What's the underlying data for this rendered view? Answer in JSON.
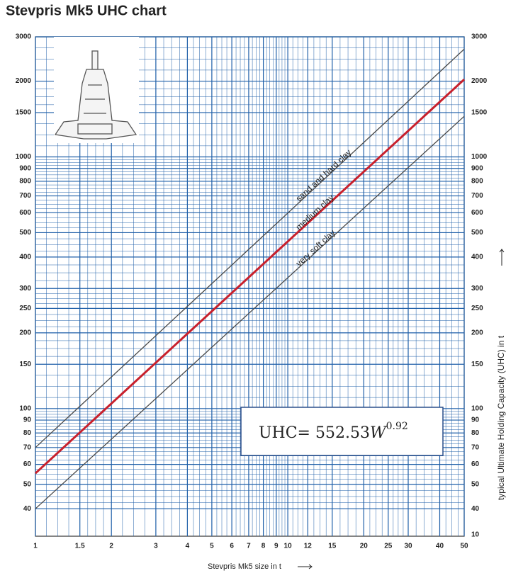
{
  "chart_data": {
    "type": "line",
    "title": "Stevpris Mk5 UHC chart",
    "x_label": "Stevpris Mk5 size in t",
    "y2_label": "typical Ultimate Holding Capacity (UHC) in t",
    "xscale": "log",
    "yscale": "log",
    "x": [
      1,
      50
    ],
    "series": [
      {
        "name": "sand and hard clay",
        "color": "#4a4a4a",
        "values": [
          70,
          2680
        ]
      },
      {
        "name": "medium clay",
        "color": "#c8202c",
        "values": [
          55.3,
          2032
        ]
      },
      {
        "name": "very soft clay",
        "color": "#4a4a4a",
        "values": [
          40,
          1450
        ]
      }
    ],
    "xlim": [
      1,
      50
    ],
    "ylim": [
      31.1,
      3000
    ],
    "xticks": [
      1,
      1.5,
      2,
      3,
      4,
      5,
      6,
      7,
      8,
      9,
      10,
      12,
      15,
      20,
      25,
      30,
      40,
      50
    ],
    "yticks": [
      40,
      50,
      60,
      70,
      80,
      90,
      100,
      150,
      200,
      250,
      300,
      400,
      500,
      600,
      700,
      800,
      900,
      1000,
      1500,
      2000,
      3000
    ],
    "y2_bottom_label": "10",
    "grid": true,
    "grid_color": "#1f5fa8",
    "equation": {
      "lhs": "UHC= 552.53",
      "variable": "W",
      "exponent": "0.92"
    }
  }
}
